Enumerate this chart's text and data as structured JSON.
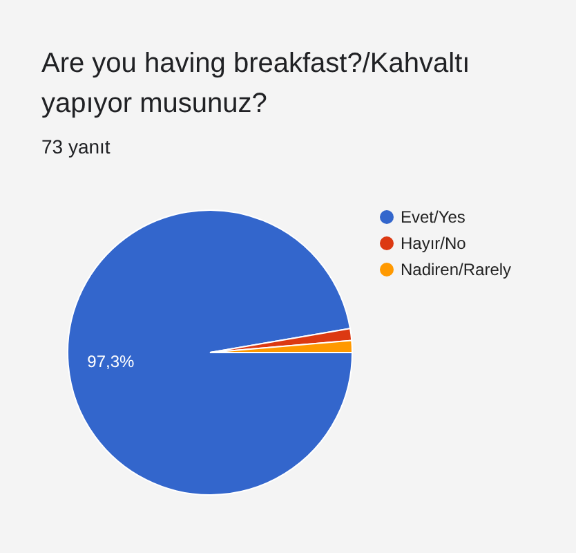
{
  "chart_data": {
    "type": "pie",
    "title": "Are you having breakfast?/Kahvaltı yapıyor musunuz?",
    "subtitle": "73 yanıt",
    "categories": [
      "Evet/Yes",
      "Hayır/No",
      "Nadiren/Rarely"
    ],
    "values": [
      97.3,
      1.35,
      1.35
    ],
    "colors": [
      "#3366cc",
      "#dc3912",
      "#ff9900"
    ],
    "value_labels": [
      "97,3%",
      null,
      null
    ],
    "legend": "right"
  }
}
